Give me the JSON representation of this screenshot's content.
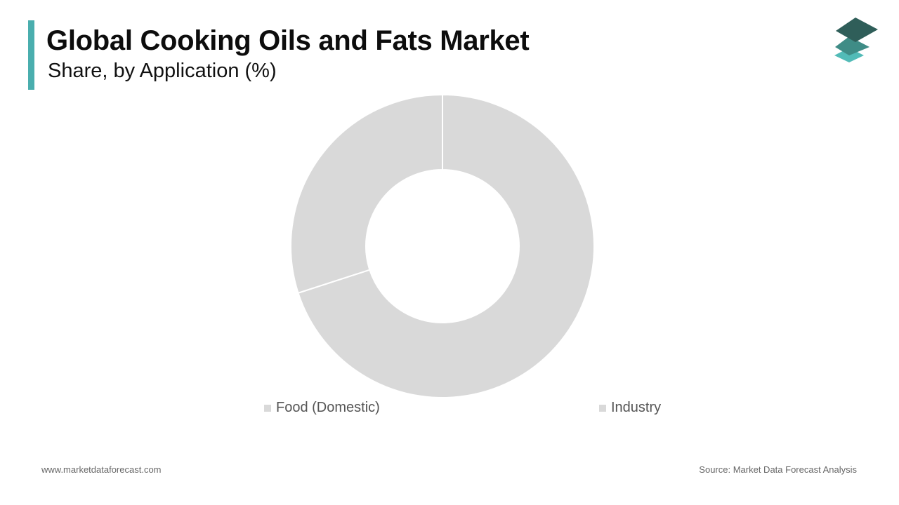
{
  "header": {
    "title": "Global Cooking Oils and Fats Market",
    "subtitle": "Share, by Application (%)"
  },
  "logo": {
    "icon": "stacked-layers-icon",
    "colors": [
      "#2f5e59",
      "#3f8c86",
      "#52bbb7"
    ]
  },
  "colors": {
    "accent": "#4aaeae",
    "slice": "#d9d9d9",
    "separator": "#ffffff"
  },
  "chart_data": {
    "type": "pie",
    "donut": true,
    "title": "",
    "categories": [
      "Food (Domestic)",
      "Industry"
    ],
    "values": [
      70,
      30
    ],
    "colors": [
      "#d9d9d9",
      "#d9d9d9"
    ],
    "legend_position": "bottom"
  },
  "footer": {
    "website": "www.marketdataforecast.com",
    "source": "Source: Market Data Forecast Analysis"
  }
}
